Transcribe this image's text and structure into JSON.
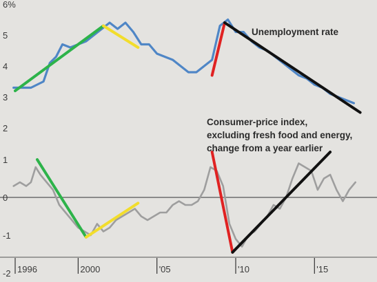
{
  "chart_data": [
    {
      "type": "line",
      "title": "Unemployment rate",
      "y_ticks": [
        "6%",
        "5",
        "4",
        "3",
        "2"
      ],
      "ylim": [
        2,
        6
      ],
      "xlim": [
        1995.4,
        2018
      ],
      "series": [
        {
          "name": "Unemployment rate",
          "color": "#4f86c6",
          "x": [
            1995.9,
            1996.5,
            1997.0,
            1997.4,
            1997.8,
            1998.2,
            1998.6,
            1999.0,
            1999.5,
            2000.0,
            2000.5,
            2001.0,
            2001.5,
            2002.0,
            2002.5,
            2003.0,
            2003.5,
            2004.0,
            2004.5,
            2005.0,
            2005.5,
            2006.0,
            2006.5,
            2007.0,
            2007.5,
            2008.0,
            2008.5,
            2009.0,
            2009.5,
            2010.0,
            2010.5,
            2011.0,
            2011.5,
            2012.0,
            2012.5,
            2013.0,
            2013.5,
            2014.0,
            2014.5,
            2015.0,
            2015.5,
            2016.0,
            2016.5,
            2017.0,
            2017.5
          ],
          "y": [
            3.3,
            3.3,
            3.3,
            3.4,
            3.5,
            4.1,
            4.3,
            4.7,
            4.6,
            4.7,
            4.8,
            5.0,
            5.2,
            5.4,
            5.2,
            5.4,
            5.1,
            4.7,
            4.7,
            4.4,
            4.3,
            4.2,
            4.0,
            3.8,
            3.8,
            4.0,
            4.2,
            5.3,
            5.5,
            5.1,
            5.1,
            4.8,
            4.6,
            4.5,
            4.3,
            4.1,
            3.9,
            3.7,
            3.6,
            3.4,
            3.3,
            3.1,
            3.0,
            2.9,
            2.8
          ]
        }
      ]
    },
    {
      "type": "line",
      "title": "Consumer-price index, excluding fresh food and energy, change from a year earlier",
      "title_lines": [
        "Consumer-price index,",
        "excluding fresh food and energy,",
        "change from a year earlier"
      ],
      "y_ticks": [
        "1",
        "0",
        "-1",
        "-2"
      ],
      "ylim": [
        -2,
        1
      ],
      "xlim": [
        1995.4,
        2018
      ],
      "x_ticks": [
        "1996",
        "2000",
        "'05",
        "'10",
        "'15"
      ],
      "x_tick_values": [
        1996,
        2000,
        2005,
        2010,
        2015
      ],
      "series": [
        {
          "name": "Consumer-price index, excluding fresh food and energy",
          "color": "#9e9e9e",
          "x": [
            1995.9,
            1996.3,
            1996.7,
            1997.0,
            1997.3,
            1997.6,
            1998.0,
            1998.4,
            1998.8,
            1999.2,
            1999.6,
            2000.0,
            2000.4,
            2000.8,
            2001.2,
            2001.6,
            2002.0,
            2002.4,
            2002.8,
            2003.2,
            2003.6,
            2004.0,
            2004.4,
            2004.8,
            2005.2,
            2005.6,
            2006.0,
            2006.4,
            2006.8,
            2007.2,
            2007.6,
            2008.0,
            2008.4,
            2008.8,
            2009.2,
            2009.6,
            2010.0,
            2010.4,
            2010.8,
            2011.2,
            2011.6,
            2012.0,
            2012.4,
            2012.8,
            2013.2,
            2013.6,
            2014.0,
            2014.4,
            2014.8,
            2015.2,
            2015.6,
            2016.0,
            2016.4,
            2016.8,
            2017.2,
            2017.6
          ],
          "y": [
            0.3,
            0.4,
            0.3,
            0.4,
            0.8,
            0.6,
            0.4,
            0.2,
            -0.2,
            -0.4,
            -0.6,
            -0.8,
            -0.9,
            -1.0,
            -0.7,
            -0.9,
            -0.8,
            -0.6,
            -0.5,
            -0.4,
            -0.3,
            -0.5,
            -0.6,
            -0.5,
            -0.4,
            -0.4,
            -0.2,
            -0.1,
            -0.2,
            -0.2,
            -0.1,
            0.2,
            0.8,
            0.7,
            0.3,
            -0.7,
            -1.1,
            -1.3,
            -1.0,
            -0.9,
            -0.7,
            -0.5,
            -0.2,
            -0.3,
            0.0,
            0.5,
            0.9,
            0.8,
            0.7,
            0.2,
            0.5,
            0.6,
            0.2,
            -0.1,
            0.2,
            0.4
          ]
        }
      ]
    }
  ],
  "annotation_lines": {
    "unemployment": [
      {
        "color": "#2db34a",
        "points": [
          [
            1996.0,
            3.2
          ],
          [
            2001.6,
            5.3
          ]
        ]
      },
      {
        "color": "#f2dd2c",
        "points": [
          [
            2001.6,
            5.3
          ],
          [
            2003.8,
            4.6
          ]
        ]
      },
      {
        "color": "#e02222",
        "points": [
          [
            2008.5,
            3.7
          ],
          [
            2009.3,
            5.4
          ]
        ]
      },
      {
        "color": "#111111",
        "points": [
          [
            2009.3,
            5.4
          ],
          [
            2017.9,
            2.5
          ]
        ]
      }
    ],
    "cpi": [
      {
        "color": "#2db34a",
        "points": [
          [
            1997.4,
            1.0
          ],
          [
            2000.5,
            -1.05
          ]
        ]
      },
      {
        "color": "#f2dd2c",
        "points": [
          [
            2000.5,
            -1.05
          ],
          [
            2003.8,
            -0.15
          ]
        ]
      },
      {
        "color": "#e02222",
        "points": [
          [
            2008.5,
            1.2
          ],
          [
            2009.8,
            -1.45
          ]
        ]
      },
      {
        "color": "#111111",
        "points": [
          [
            2009.8,
            -1.45
          ],
          [
            2016.0,
            1.2
          ]
        ]
      }
    ]
  }
}
